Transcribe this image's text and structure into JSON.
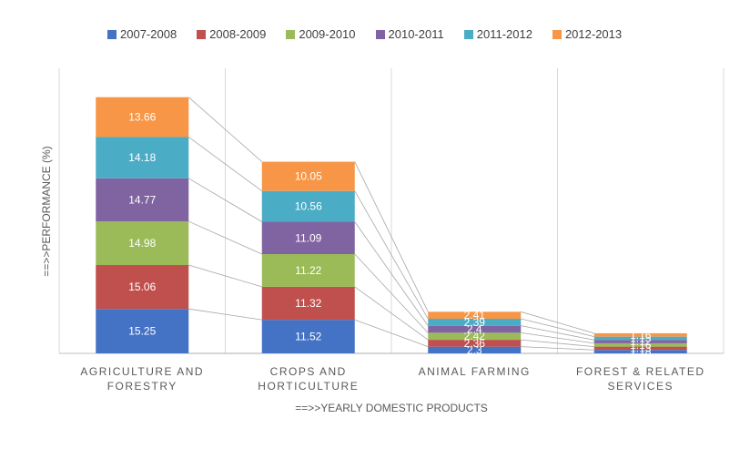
{
  "chart_data": {
    "type": "bar",
    "stacked": true,
    "title": "",
    "xlabel": "==>>YEARLY DOMESTIC PRODUCTS",
    "ylabel": "==>>PERFORMANCE (%)",
    "categories": [
      [
        "AGRICULTURE AND",
        "FORESTRY"
      ],
      [
        "CROPS AND",
        "HORTICULTURE"
      ],
      [
        "ANIMAL FARMING"
      ],
      [
        "FOREST & RELATED",
        "SERVICES"
      ]
    ],
    "legend_position": "top",
    "grid": false,
    "series": [
      {
        "name": "2007-2008",
        "color": "#4472C4",
        "values": [
          15.25,
          11.52,
          2.3,
          1.18
        ]
      },
      {
        "name": "2008-2009",
        "color": "#C0504D",
        "values": [
          15.06,
          11.32,
          2.36,
          1.13
        ]
      },
      {
        "name": "2009-2010",
        "color": "#9BBB59",
        "values": [
          14.98,
          11.22,
          2.42,
          1.16
        ]
      },
      {
        "name": "2010-2011",
        "color": "#8064A2",
        "values": [
          14.77,
          11.09,
          2.4,
          1.12
        ]
      },
      {
        "name": "2011-2012",
        "color": "#4BACC6",
        "values": [
          14.18,
          10.56,
          2.39,
          1.15
        ]
      },
      {
        "name": "2012-2013",
        "color": "#F79646",
        "values": [
          13.66,
          10.05,
          2.41,
          1.16
        ]
      }
    ]
  }
}
